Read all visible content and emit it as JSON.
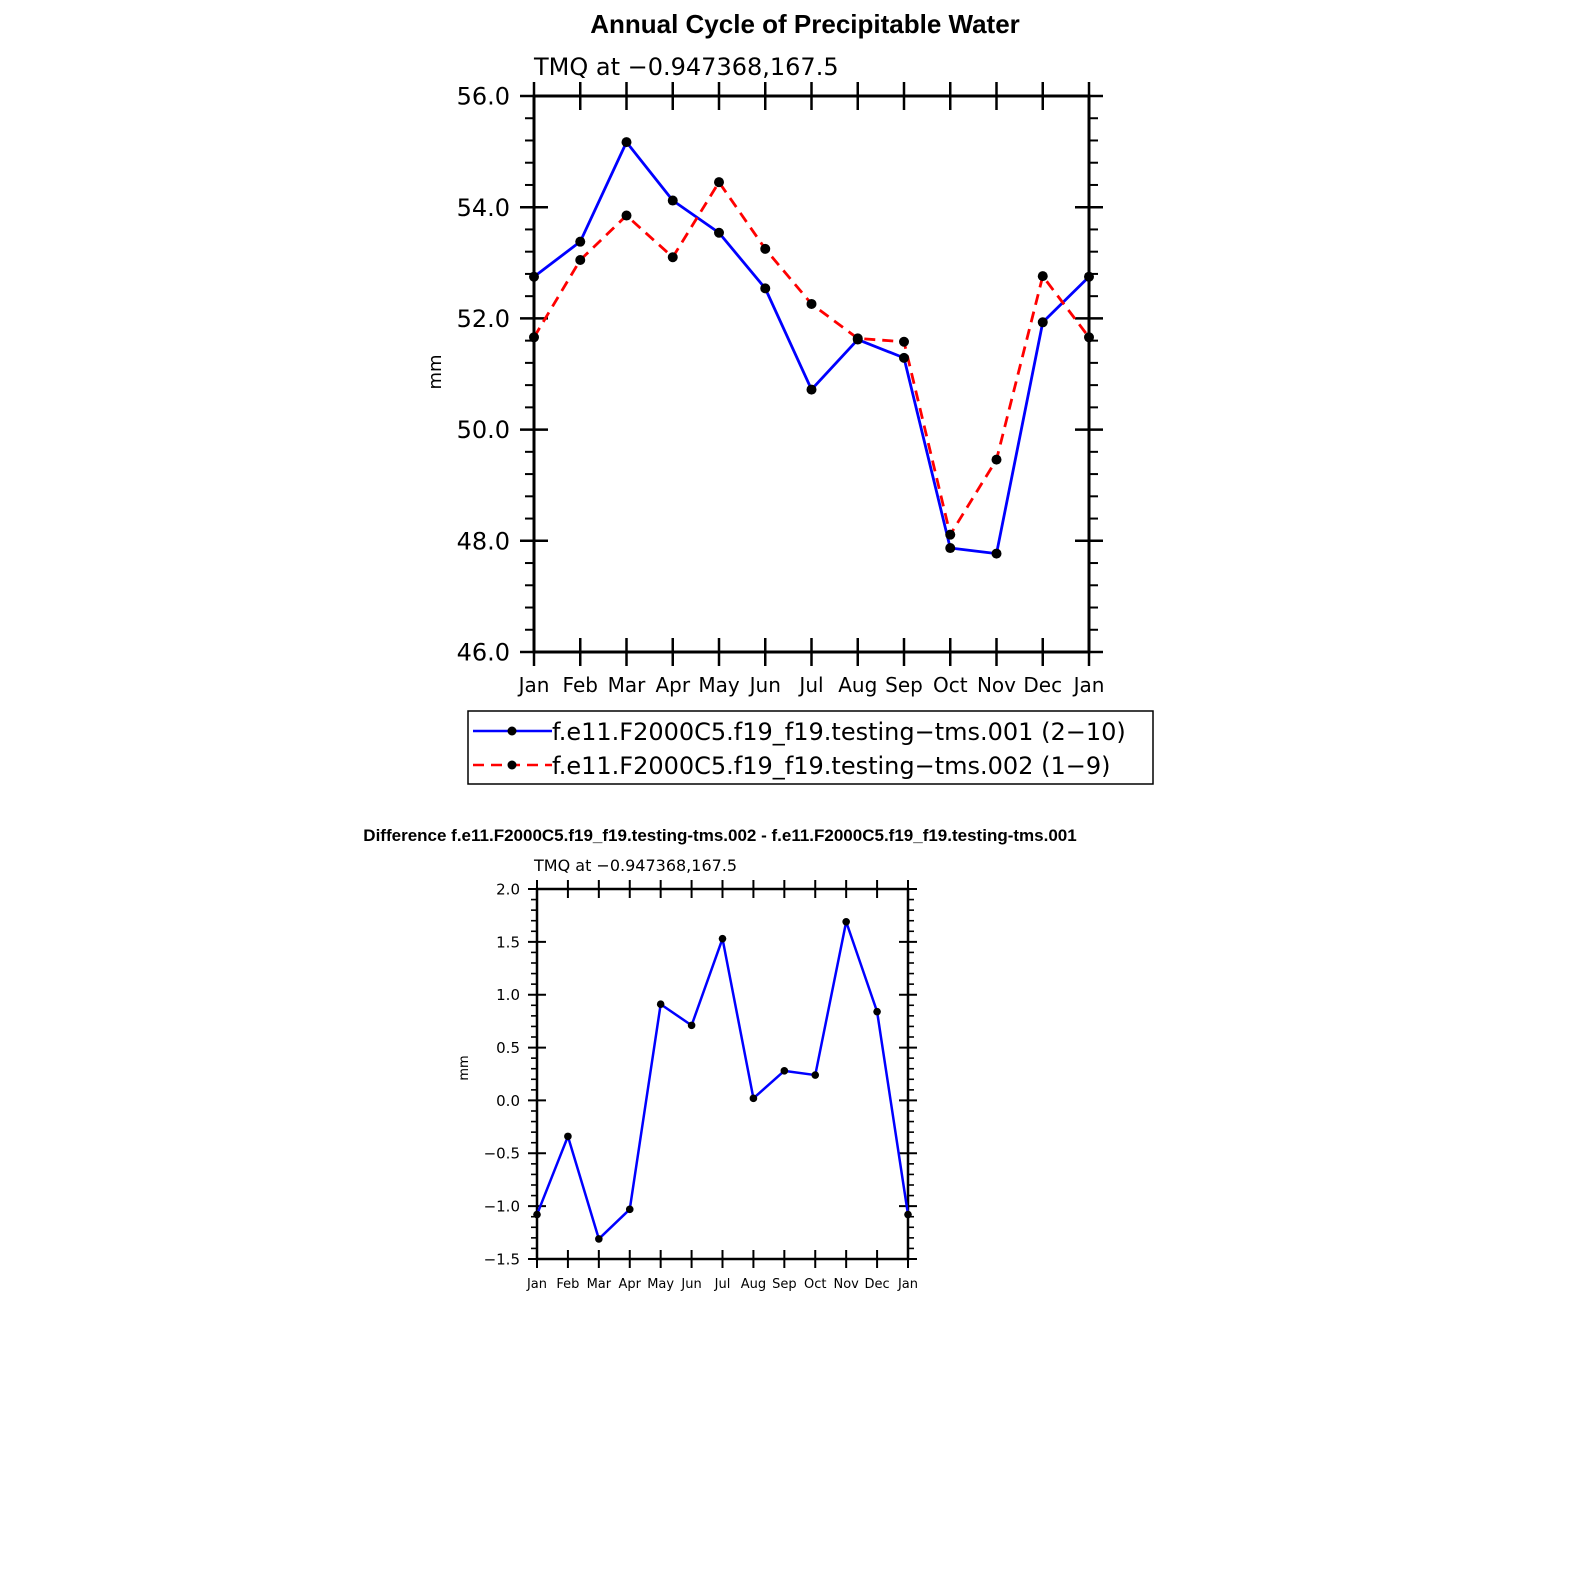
{
  "chart_data": [
    {
      "type": "line",
      "title": "Annual Cycle of Precipitable Water",
      "subtitle": "TMQ at −0.947368,167.5",
      "xlabel": "",
      "ylabel": "mm",
      "categories": [
        "Jan",
        "Feb",
        "Mar",
        "Apr",
        "May",
        "Jun",
        "Jul",
        "Aug",
        "Sep",
        "Oct",
        "Nov",
        "Dec",
        "Jan"
      ],
      "ylim": [
        46.0,
        56.0
      ],
      "yticks": [
        "46.0",
        "48.0",
        "50.0",
        "52.0",
        "54.0",
        "56.0"
      ],
      "grid": false,
      "legend_position": "bottom",
      "series": [
        {
          "name": "f.e11.F2000C5.f19_f19.testing−tms.001 (2−10)",
          "color": "#0000ff",
          "style": "solid",
          "values": [
            52.75,
            53.38,
            55.17,
            54.12,
            53.54,
            52.54,
            50.72,
            51.62,
            51.29,
            47.87,
            47.77,
            51.93,
            52.75
          ]
        },
        {
          "name": "f.e11.F2000C5.f19_f19.testing−tms.002 (1−9)",
          "color": "#ff0000",
          "style": "dashed",
          "values": [
            51.66,
            53.05,
            53.85,
            53.1,
            54.45,
            53.25,
            52.26,
            51.64,
            51.58,
            48.11,
            49.46,
            52.76,
            51.66
          ]
        }
      ]
    },
    {
      "type": "line",
      "title": "Difference f.e11.F2000C5.f19_f19.testing-tms.002 - f.e11.F2000C5.f19_f19.testing-tms.001",
      "subtitle": "TMQ at −0.947368,167.5",
      "xlabel": "",
      "ylabel": "mm",
      "categories": [
        "Jan",
        "Feb",
        "Mar",
        "Apr",
        "May",
        "Jun",
        "Jul",
        "Aug",
        "Sep",
        "Oct",
        "Nov",
        "Dec",
        "Jan"
      ],
      "ylim": [
        -1.5,
        2.0
      ],
      "yticks": [
        "−1.5",
        "−1.0",
        "−0.5",
        "0.0",
        "0.5",
        "1.0",
        "1.5",
        "2.0"
      ],
      "grid": false,
      "series": [
        {
          "name": "difference",
          "color": "#0000ff",
          "style": "solid",
          "values": [
            -1.08,
            -0.34,
            -1.31,
            -1.03,
            0.91,
            0.71,
            1.53,
            0.02,
            0.28,
            0.24,
            1.69,
            0.84,
            -1.08
          ]
        }
      ]
    }
  ]
}
